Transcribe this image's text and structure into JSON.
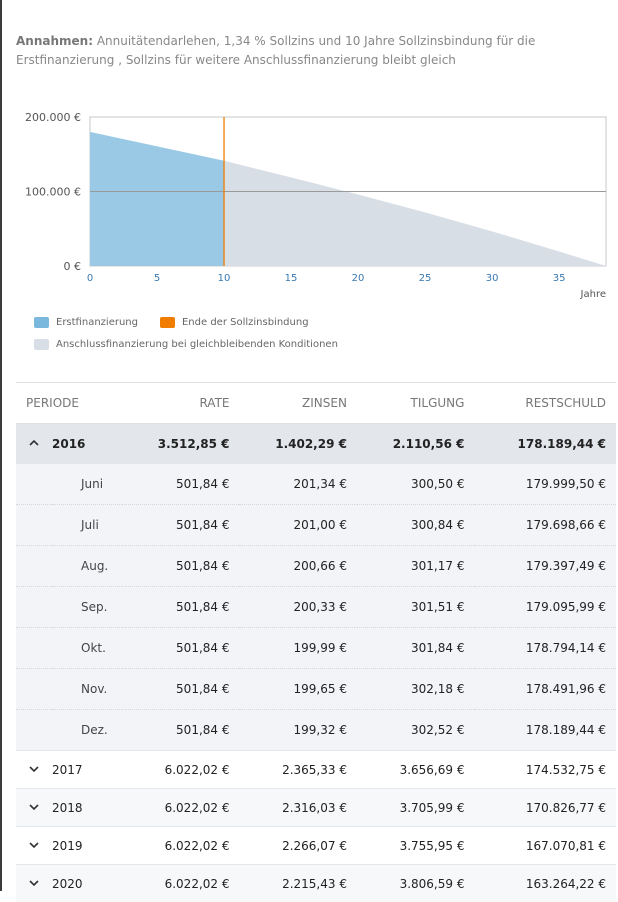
{
  "assumptions": {
    "label": "Annahmen:",
    "text": " Annuitätendarlehen, 1,34 % Sollzins und 10 Jahre Sollzinsbindung für die Erstfinanzierung , Sollzins für weitere Anschlussfinanzierung bleibt gleich"
  },
  "chart_data": {
    "type": "area",
    "x_ticks": [
      "0",
      "5",
      "10",
      "15",
      "20",
      "25",
      "30",
      "35"
    ],
    "x_unit_label": "Jahre",
    "y_ticks": [
      "0 €",
      "100.000 €",
      "200.000 €"
    ],
    "ylim": [
      0,
      200000
    ],
    "xlim": [
      0,
      38.5
    ],
    "series": [
      {
        "name": "Erstfinanzierung",
        "color": "#99c9e4",
        "x": [
          0,
          10
        ],
        "y": [
          179999.5,
          141200
        ]
      },
      {
        "name": "Anschlussfinanzierung bei gleichbleibenden Konditionen",
        "color": "#d8dee6",
        "x": [
          10,
          15,
          20,
          25,
          30,
          35,
          38.5
        ],
        "y": [
          141200,
          119000,
          96000,
          72000,
          46500,
          19500,
          0
        ]
      }
    ],
    "marker": {
      "name": "Ende der Sollzinsbindung",
      "x": 10,
      "color": "#f07d00"
    },
    "grid_line_y": 100000
  },
  "legend": {
    "items": [
      {
        "label": "Erstfinanzierung",
        "color": "#7ab8de"
      },
      {
        "label": "Ende der Sollzinsbindung",
        "color": "#f07d00"
      },
      {
        "label": "Anschlussfinanzierung bei gleichbleibenden Konditionen",
        "color": "#d8dee6"
      }
    ]
  },
  "table": {
    "headers": [
      "PERIODE",
      "RATE",
      "ZINSEN",
      "TILGUNG",
      "RESTSCHULD"
    ],
    "open_year": {
      "year": "2016",
      "rate": "3.512,85 €",
      "zinsen": "1.402,29 €",
      "tilgung": "2.110,56 €",
      "restschuld": "178.189,44 €"
    },
    "months": [
      {
        "period": "Juni",
        "rate": "501,84 €",
        "zinsen": "201,34 €",
        "tilgung": "300,50 €",
        "restschuld": "179.999,50 €"
      },
      {
        "period": "Juli",
        "rate": "501,84 €",
        "zinsen": "201,00 €",
        "tilgung": "300,84 €",
        "restschuld": "179.698,66 €"
      },
      {
        "period": "Aug.",
        "rate": "501,84 €",
        "zinsen": "200,66 €",
        "tilgung": "301,17 €",
        "restschuld": "179.397,49 €"
      },
      {
        "period": "Sep.",
        "rate": "501,84 €",
        "zinsen": "200,33 €",
        "tilgung": "301,51 €",
        "restschuld": "179.095,99 €"
      },
      {
        "period": "Okt.",
        "rate": "501,84 €",
        "zinsen": "199,99 €",
        "tilgung": "301,84 €",
        "restschuld": "178.794,14 €"
      },
      {
        "period": "Nov.",
        "rate": "501,84 €",
        "zinsen": "199,65 €",
        "tilgung": "302,18 €",
        "restschuld": "178.491,96 €"
      },
      {
        "period": "Dez.",
        "rate": "501,84 €",
        "zinsen": "199,32 €",
        "tilgung": "302,52 €",
        "restschuld": "178.189,44 €"
      }
    ],
    "years": [
      {
        "year": "2017",
        "rate": "6.022,02 €",
        "zinsen": "2.365,33 €",
        "tilgung": "3.656,69 €",
        "restschuld": "174.532,75 €"
      },
      {
        "year": "2018",
        "rate": "6.022,02 €",
        "zinsen": "2.316,03 €",
        "tilgung": "3.705,99 €",
        "restschuld": "170.826,77 €"
      },
      {
        "year": "2019",
        "rate": "6.022,02 €",
        "zinsen": "2.266,07 €",
        "tilgung": "3.755,95 €",
        "restschuld": "167.070,81 €"
      },
      {
        "year": "2020",
        "rate": "6.022,02 €",
        "zinsen": "2.215,43 €",
        "tilgung": "3.806,59 €",
        "restschuld": "163.264,22 €"
      }
    ]
  },
  "icons": {
    "expanded": "chevron-up-icon",
    "collapsed": "chevron-down-icon"
  }
}
